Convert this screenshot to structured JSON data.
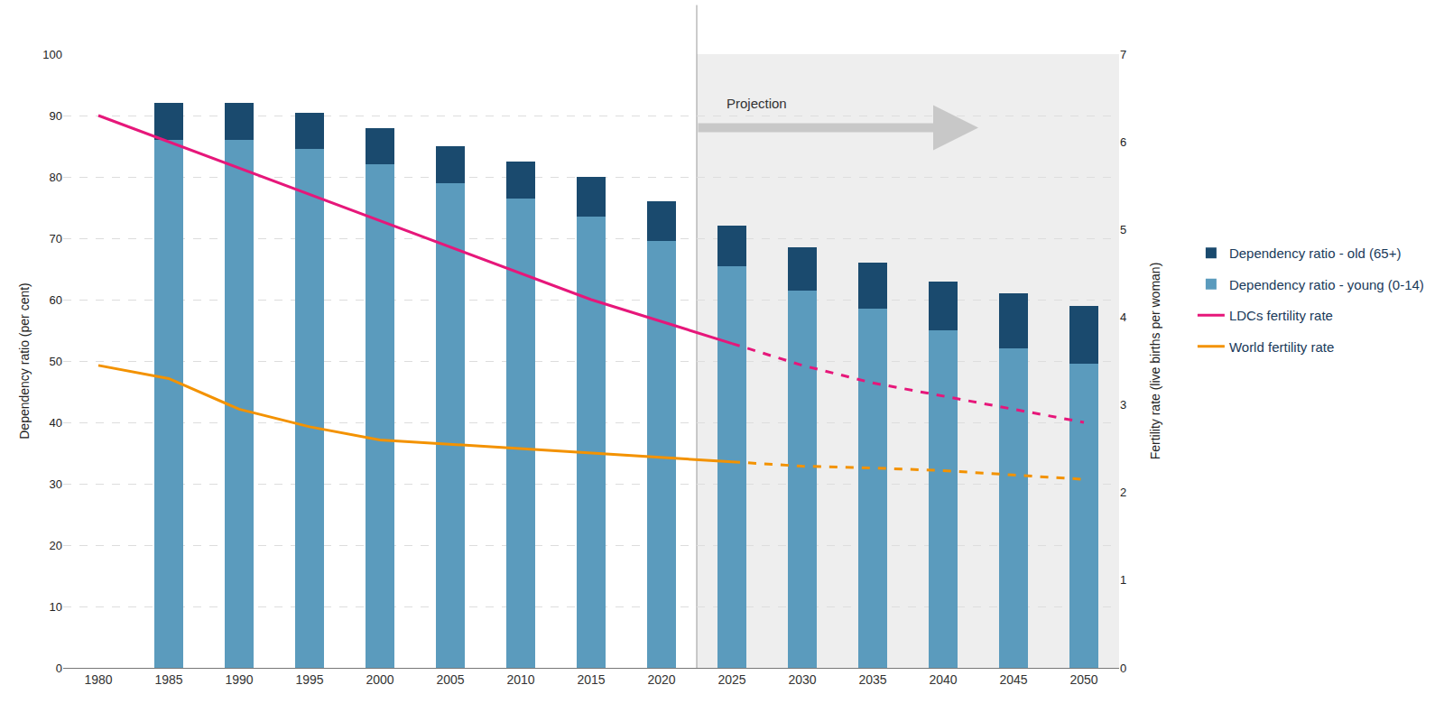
{
  "chart_data": {
    "type": "bar",
    "stacked": true,
    "grid": true,
    "legend": "right",
    "categories": [
      "1980",
      "1985",
      "1990",
      "1995",
      "2000",
      "2005",
      "2010",
      "2015",
      "2020",
      "2025",
      "2030",
      "2035",
      "2040",
      "2045",
      "2050"
    ],
    "ylabel": "Dependency ratio (per cent)",
    "y2label": "Fertility rate (live births per woman)",
    "ylim": [
      0,
      100
    ],
    "yticks": [
      0,
      10,
      20,
      30,
      40,
      50,
      60,
      70,
      80,
      90,
      100
    ],
    "y2lim": [
      0,
      7
    ],
    "y2ticks": [
      0,
      1,
      2,
      3,
      4,
      5,
      6,
      7
    ],
    "annotations": [
      {
        "text": "Projection",
        "x": "2025"
      }
    ],
    "series": [
      {
        "name": "Dependency ratio - young (0-14)",
        "type": "bar",
        "color": "#5b9bbd",
        "values": [
          null,
          86,
          86,
          84.5,
          82,
          79,
          76.5,
          73.5,
          69.5,
          65.5,
          61.5,
          58.5,
          55,
          52,
          49.5
        ]
      },
      {
        "name": "Dependency ratio - old (65+)",
        "type": "bar",
        "color": "#1a4a6e",
        "values": [
          null,
          6,
          6,
          6,
          6,
          6,
          6,
          6.5,
          6.5,
          6.5,
          7,
          7.5,
          8,
          9,
          9.5
        ]
      },
      {
        "name": "LDCs fertility rate",
        "type": "line",
        "axis": "y2",
        "color": "#e6177a",
        "values": [
          6.3,
          6.0,
          5.7,
          5.4,
          5.1,
          4.8,
          4.5,
          4.2,
          3.95,
          3.7,
          3.45,
          3.25,
          3.1,
          2.95,
          2.8
        ]
      },
      {
        "name": "World fertility rate",
        "type": "line",
        "axis": "y2",
        "color": "#f39200",
        "values": [
          3.45,
          3.3,
          2.95,
          2.75,
          2.6,
          2.55,
          2.5,
          2.45,
          2.4,
          2.35,
          2.3,
          2.28,
          2.25,
          2.2,
          2.15
        ]
      }
    ]
  }
}
